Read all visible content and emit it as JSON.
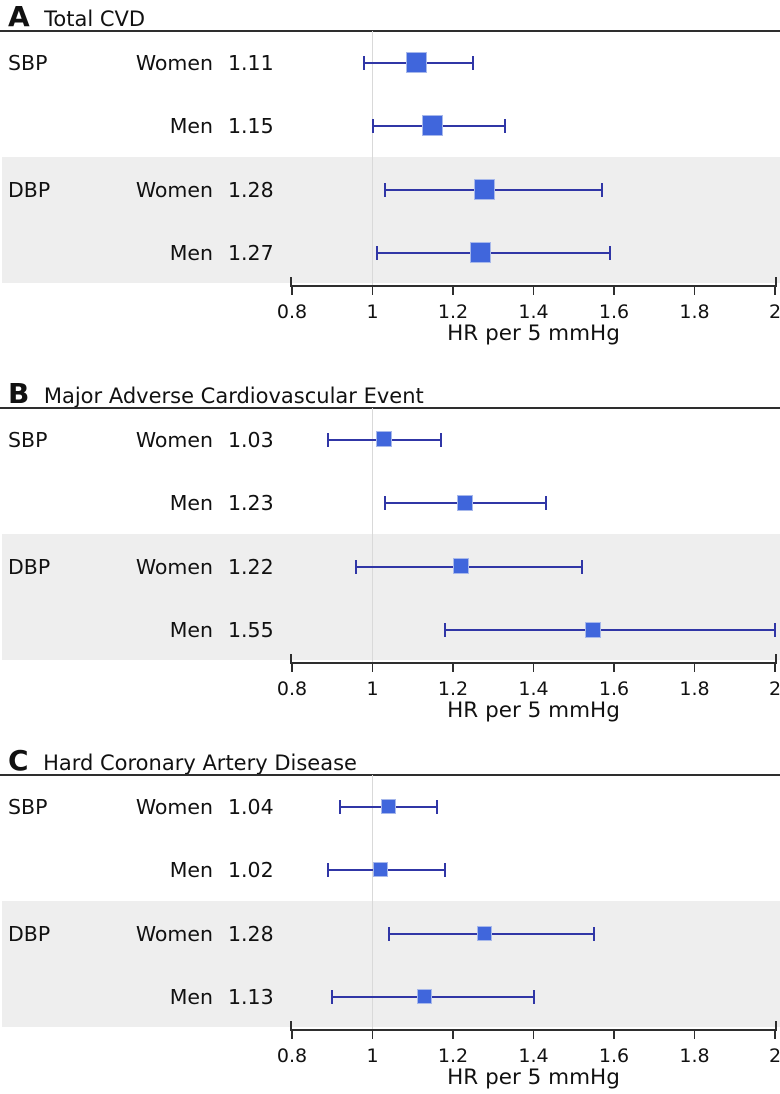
{
  "colors": {
    "marker_fill": "#4066DC",
    "marker_edge": "#A7B8EB",
    "ci_line": "#3036A6",
    "shaded_band": "#EEEEEE",
    "reference_line": "#D9D9D9",
    "axis_line": "#2E2E2E",
    "header_rule": "#2E2E2E",
    "text": "#111111"
  },
  "chart_data": {
    "type": "forest",
    "xlabel": "HR per 5 mmHg",
    "xlim": [
      0.8,
      2
    ],
    "tick_values": [
      0.8,
      1,
      1.2,
      1.4,
      1.6,
      1.8,
      2
    ],
    "tick_labels": [
      "0.8",
      "1",
      "1.2",
      "1.4",
      "1.6",
      "1.8",
      "2"
    ],
    "reference_line": 1,
    "shaded_rows_group": "DBP",
    "panels": [
      {
        "letter": "A",
        "title": "Total CVD",
        "marker_size": 19,
        "rows": [
          {
            "group": "SBP",
            "sex": "Women",
            "hr_label": "1.11",
            "hr": 1.11,
            "ci_low": 0.98,
            "ci_high": 1.25,
            "shaded": false
          },
          {
            "group": "",
            "sex": "Men",
            "hr_label": "1.15",
            "hr": 1.15,
            "ci_low": 1.0,
            "ci_high": 1.33,
            "shaded": false
          },
          {
            "group": "DBP",
            "sex": "Women",
            "hr_label": "1.28",
            "hr": 1.28,
            "ci_low": 1.03,
            "ci_high": 1.57,
            "shaded": true
          },
          {
            "group": "",
            "sex": "Men",
            "hr_label": "1.27",
            "hr": 1.27,
            "ci_low": 1.01,
            "ci_high": 1.59,
            "shaded": true
          }
        ]
      },
      {
        "letter": "B",
        "title": "Major Adverse Cardiovascular Event",
        "marker_size": 14,
        "rows": [
          {
            "group": "SBP",
            "sex": "Women",
            "hr_label": "1.03",
            "hr": 1.03,
            "ci_low": 0.89,
            "ci_high": 1.17,
            "shaded": false
          },
          {
            "group": "",
            "sex": "Men",
            "hr_label": "1.23",
            "hr": 1.23,
            "ci_low": 1.03,
            "ci_high": 1.43,
            "shaded": false
          },
          {
            "group": "DBP",
            "sex": "Women",
            "hr_label": "1.22",
            "hr": 1.22,
            "ci_low": 0.96,
            "ci_high": 1.52,
            "shaded": true
          },
          {
            "group": "",
            "sex": "Men",
            "hr_label": "1.55",
            "hr": 1.55,
            "ci_low": 1.18,
            "ci_high": 2.0,
            "shaded": true
          }
        ]
      },
      {
        "letter": "C",
        "title": "Hard Coronary Artery Disease",
        "marker_size": 13,
        "rows": [
          {
            "group": "SBP",
            "sex": "Women",
            "hr_label": "1.04",
            "hr": 1.04,
            "ci_low": 0.92,
            "ci_high": 1.16,
            "shaded": false
          },
          {
            "group": "",
            "sex": "Men",
            "hr_label": "1.02",
            "hr": 1.02,
            "ci_low": 0.89,
            "ci_high": 1.18,
            "shaded": false
          },
          {
            "group": "DBP",
            "sex": "Women",
            "hr_label": "1.28",
            "hr": 1.28,
            "ci_low": 1.04,
            "ci_high": 1.55,
            "shaded": true
          },
          {
            "group": "",
            "sex": "Men",
            "hr_label": "1.13",
            "hr": 1.13,
            "ci_low": 0.9,
            "ci_high": 1.4,
            "shaded": true
          }
        ]
      }
    ]
  }
}
